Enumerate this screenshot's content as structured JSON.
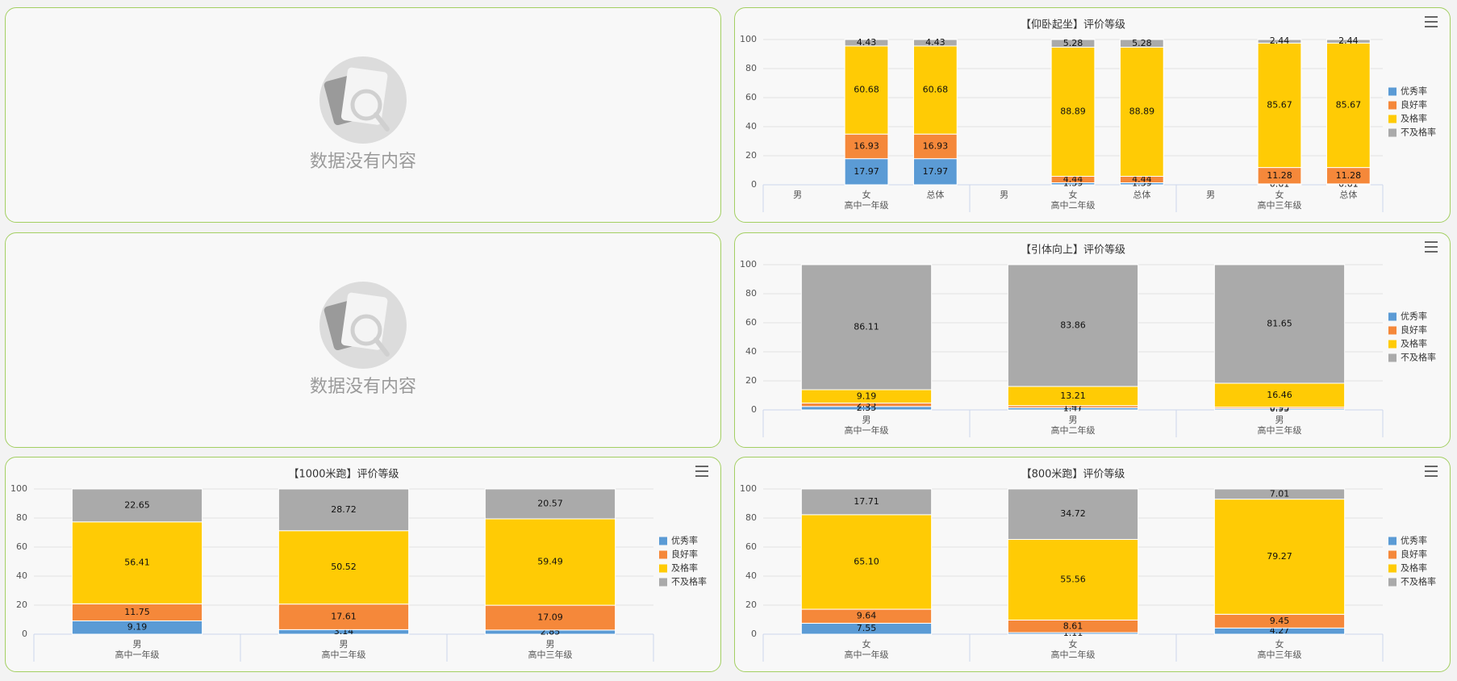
{
  "placeholders": [
    "数据没有内容",
    "数据没有内容"
  ],
  "chart_data": [
    {
      "type": "bar",
      "stacked": true,
      "title": "【仰卧起坐】评价等级",
      "categories": [
        "男",
        "女",
        "总体",
        "男",
        "女",
        "总体",
        "男",
        "女",
        "总体"
      ],
      "groups": [
        "高中一年级",
        "高中二年级",
        "高中三年级"
      ],
      "series": [
        {
          "name": "优秀率",
          "color": "#5b9bd5",
          "values": [
            null,
            17.97,
            17.97,
            null,
            1.39,
            1.39,
            null,
            0.61,
            0.61
          ]
        },
        {
          "name": "良好率",
          "color": "#f5883a",
          "values": [
            null,
            16.93,
            16.93,
            null,
            4.44,
            4.44,
            null,
            11.28,
            11.28
          ]
        },
        {
          "name": "及格率",
          "color": "#ffcb05",
          "values": [
            null,
            60.68,
            60.68,
            null,
            88.89,
            88.89,
            null,
            85.67,
            85.67
          ]
        },
        {
          "name": "不及格率",
          "color": "#aaaaaa",
          "values": [
            null,
            4.43,
            4.43,
            null,
            5.28,
            5.28,
            null,
            2.44,
            2.44
          ]
        }
      ],
      "ylim": [
        0,
        100
      ],
      "yticks": [
        0,
        20,
        40,
        60,
        80,
        100
      ],
      "grid": true,
      "legend": "right"
    },
    {
      "type": "bar",
      "stacked": true,
      "title": "【引体向上】评价等级",
      "categories": [
        "男",
        "男",
        "男"
      ],
      "groups": [
        "高中一年级",
        "高中二年级",
        "高中三年级"
      ],
      "series": [
        {
          "name": "优秀率",
          "color": "#5b9bd5",
          "values": [
            2.35,
            1.47,
            0.95
          ]
        },
        {
          "name": "良好率",
          "color": "#f5883a",
          "values": [
            2.35,
            1.47,
            0.95
          ]
        },
        {
          "name": "及格率",
          "color": "#ffcb05",
          "values": [
            9.19,
            13.21,
            16.46
          ]
        },
        {
          "name": "不及格率",
          "color": "#aaaaaa",
          "values": [
            86.11,
            83.86,
            81.65
          ]
        }
      ],
      "ylim": [
        0,
        100
      ],
      "yticks": [
        0,
        20,
        40,
        60,
        80,
        100
      ],
      "grid": true,
      "legend": "right"
    },
    {
      "type": "bar",
      "stacked": true,
      "title": "【1000米跑】评价等级",
      "categories": [
        "男",
        "男",
        "男"
      ],
      "groups": [
        "高中一年级",
        "高中二年级",
        "高中三年级"
      ],
      "series": [
        {
          "name": "优秀率",
          "color": "#5b9bd5",
          "values": [
            9.19,
            3.14,
            2.85
          ]
        },
        {
          "name": "良好率",
          "color": "#f5883a",
          "values": [
            11.75,
            17.61,
            17.09
          ]
        },
        {
          "name": "及格率",
          "color": "#ffcb05",
          "values": [
            56.41,
            50.52,
            59.49
          ]
        },
        {
          "name": "不及格率",
          "color": "#aaaaaa",
          "values": [
            22.65,
            28.72,
            20.57
          ]
        }
      ],
      "ylim": [
        0,
        100
      ],
      "yticks": [
        0,
        20,
        40,
        60,
        80,
        100
      ],
      "grid": true,
      "legend": "right"
    },
    {
      "type": "bar",
      "stacked": true,
      "title": "【800米跑】评价等级",
      "categories": [
        "女",
        "女",
        "女"
      ],
      "groups": [
        "高中一年级",
        "高中二年级",
        "高中三年级"
      ],
      "series": [
        {
          "name": "优秀率",
          "color": "#5b9bd5",
          "values": [
            7.55,
            1.11,
            4.27
          ]
        },
        {
          "name": "良好率",
          "color": "#f5883a",
          "values": [
            9.64,
            8.61,
            9.45
          ]
        },
        {
          "name": "及格率",
          "color": "#ffcb05",
          "values": [
            65.1,
            55.56,
            79.27
          ],
          "value_labels": [
            "65.10",
            "55.56",
            "79.27"
          ]
        },
        {
          "name": "不及格率",
          "color": "#aaaaaa",
          "values": [
            17.71,
            34.72,
            7.01
          ]
        }
      ],
      "ylim": [
        0,
        100
      ],
      "yticks": [
        0,
        20,
        40,
        60,
        80,
        100
      ],
      "grid": true,
      "legend": "right"
    }
  ]
}
